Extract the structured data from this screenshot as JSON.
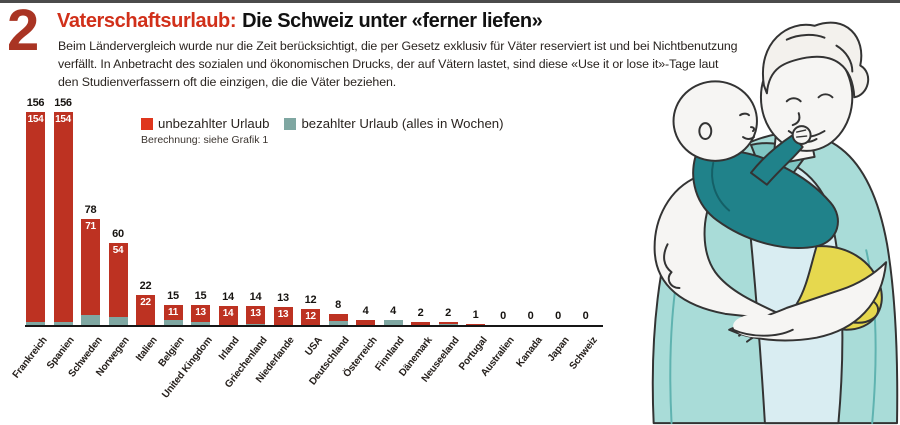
{
  "page": {
    "background": "#ffffff",
    "top_border_color": "#4b4b4b"
  },
  "header": {
    "index_number": "2",
    "title_red": "Vaterschaftsurlaub:",
    "title_black": "Die Schweiz unter «ferner liefen»",
    "intro_lines": [
      "Beim Ländervergleich wurde nur die Zeit berücksichtigt, die per Gesetz exklusiv für Väter reserviert ist und bei Nichtbenutzung",
      "verfällt. In Anbetracht des sozialen und ökonomischen Drucks, der auf Vätern lastet, sind diese «Use it or lose it»-Tage laut",
      "den Studienverfassern oft die einzigen, die die Väter beziehen."
    ]
  },
  "legend": {
    "items": [
      {
        "label": "unbezahlter Urlaub",
        "color": "#df361d"
      },
      {
        "label": "bezahlter Urlaub (alles in Wochen)",
        "color": "#7fa7a2"
      }
    ],
    "note": "Berechnung: siehe Grafik 1"
  },
  "chart_data": {
    "type": "bar",
    "stacked": true,
    "unit": "Wochen",
    "title": "Vaterschaftsurlaub: Die Schweiz unter «ferner liefen»",
    "categories": [
      "Frankreich",
      "Spanien",
      "Schweden",
      "Norwegen",
      "Italien",
      "Belgien",
      "United Kingdom",
      "Irland",
      "Griechenland",
      "Niederlande",
      "USA",
      "Deutschland",
      "Österreich",
      "Finnland",
      "Dänemark",
      "Neuseeland",
      "Portugal",
      "Australien",
      "Kanada",
      "Japan",
      "Schweiz"
    ],
    "series": [
      {
        "name": "unbezahlter Urlaub",
        "color": "#bd3222",
        "values": [
          154,
          154,
          71,
          54,
          22,
          11,
          13,
          14,
          13,
          13,
          12,
          5,
          4,
          0,
          2,
          1,
          1,
          0,
          0,
          0,
          0
        ]
      },
      {
        "name": "bezahlter Urlaub",
        "color": "#7fa7a2",
        "values": [
          2,
          2,
          7,
          6,
          0,
          4,
          2,
          0,
          1,
          0,
          0,
          3,
          0,
          4,
          0,
          1,
          0,
          0,
          0,
          0,
          0
        ]
      }
    ],
    "totals": [
      156,
      156,
      78,
      60,
      22,
      15,
      15,
      14,
      14,
      13,
      12,
      8,
      4,
      4,
      2,
      2,
      1,
      0,
      0,
      0,
      0
    ],
    "inside_labels": [
      "154",
      "154",
      "71",
      "54",
      "22",
      "11",
      "13",
      "14",
      "13",
      "13",
      "12",
      "",
      "",
      "",
      "",
      "",
      "",
      "",
      "",
      "",
      ""
    ],
    "ylim": [
      0,
      160
    ],
    "grid": false,
    "legend_position": "top"
  },
  "illustration": {
    "description": "Vater hält lächelnd ein Baby im Arm",
    "palette": {
      "shirt": "#a9dcd8",
      "shirt_shade": "#5fb3b0",
      "undershirt": "#d9edf2",
      "skin": "#f6f5f3",
      "outline": "#333333",
      "baby_onesie": "#20828a",
      "blanket": "#e6d84e"
    }
  }
}
